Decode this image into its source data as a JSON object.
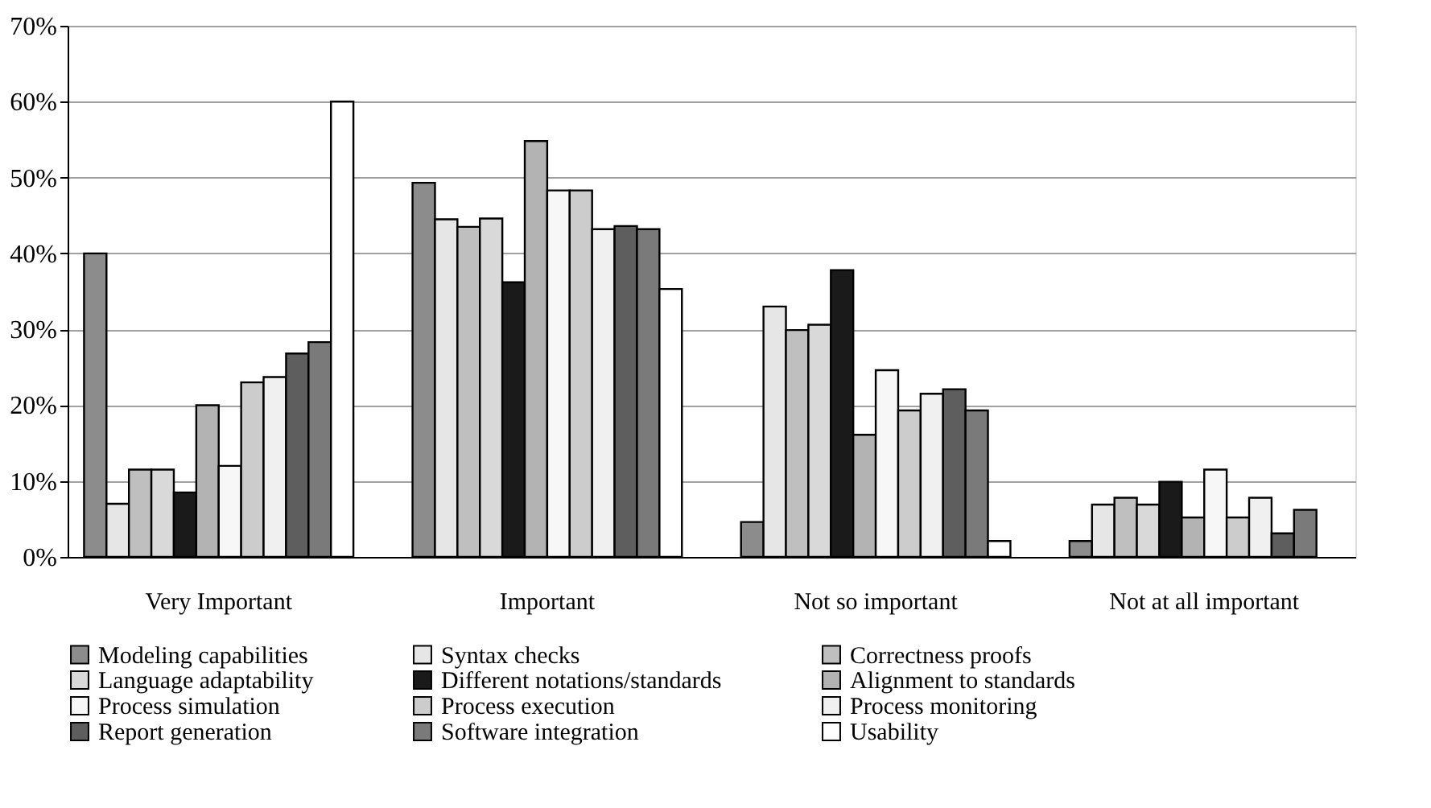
{
  "chart_data": {
    "type": "bar",
    "categories": [
      "Very Important",
      "Important",
      "Not so important",
      "Not at all important"
    ],
    "series": [
      {
        "name": "Modeling capabilities",
        "color": "#8c8c8c",
        "values": [
          40,
          49.3,
          4.6,
          2.1
        ]
      },
      {
        "name": "Syntax checks",
        "color": "#e6e6e6",
        "values": [
          7,
          44.5,
          33,
          6.9
        ]
      },
      {
        "name": "Correctness proofs",
        "color": "#bfbfbf",
        "values": [
          11.5,
          43.5,
          29.9,
          7.8
        ]
      },
      {
        "name": "Language adaptability",
        "color": "#d9d9d9",
        "values": [
          11.5,
          44.6,
          30.6,
          6.9
        ]
      },
      {
        "name": "Different notations/standards",
        "color": "#1a1a1a",
        "values": [
          8.5,
          36.2,
          37.8,
          9.9
        ]
      },
      {
        "name": "Alignment to standards",
        "color": "#b3b3b3",
        "values": [
          20,
          54.8,
          16.1,
          5.2
        ]
      },
      {
        "name": "Process simulation",
        "color": "#f7f7f7",
        "values": [
          12,
          48.3,
          24.6,
          11.5
        ]
      },
      {
        "name": "Process execution",
        "color": "#cccccc",
        "values": [
          23,
          48.3,
          19.3,
          5.2
        ]
      },
      {
        "name": "Process monitoring",
        "color": "#f0f0f0",
        "values": [
          23.7,
          43.2,
          21.5,
          7.8
        ]
      },
      {
        "name": "Report generation",
        "color": "#5e5e5e",
        "values": [
          26.8,
          43.6,
          22.1,
          3.1
        ]
      },
      {
        "name": "Software integration",
        "color": "#7a7a7a",
        "values": [
          28.3,
          43.2,
          19.3,
          6.2
        ]
      },
      {
        "name": "Usability",
        "color": "#ffffff",
        "values": [
          60,
          35.3,
          2.1,
          null
        ]
      }
    ],
    "ylim": [
      0,
      70
    ],
    "yticks": [
      {
        "value": 0,
        "label": "0%"
      },
      {
        "value": 10,
        "label": "10%"
      },
      {
        "value": 20,
        "label": "20%"
      },
      {
        "value": 30,
        "label": "30%"
      },
      {
        "value": 40,
        "label": "40%"
      },
      {
        "value": 50,
        "label": "50%"
      },
      {
        "value": 60,
        "label": "60%"
      },
      {
        "value": 70,
        "label": "70%"
      }
    ],
    "grid": "y",
    "legend": "bottom"
  }
}
